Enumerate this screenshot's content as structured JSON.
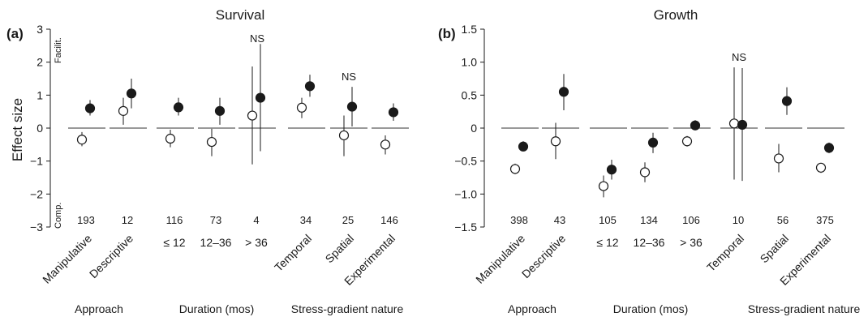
{
  "chart_data": [
    {
      "panel": "(a)",
      "type": "scatter",
      "title": "Survival",
      "ylabel": "Effect size",
      "ylim": [
        -3,
        3
      ],
      "yticks": [
        -3,
        -2,
        -1,
        0,
        1,
        2,
        3
      ],
      "side_labels": {
        "top": "Facilit.",
        "bottom": "Comp."
      },
      "categories": [
        "Manipulative",
        "Descriptive",
        "≤ 12",
        "12–36",
        "> 36",
        "Temporal",
        "Spatial",
        "Experimental"
      ],
      "groups": [
        {
          "label": "Approach",
          "categories": [
            "Manipulative",
            "Descriptive"
          ]
        },
        {
          "label": "Duration (mos)",
          "categories": [
            "≤ 12",
            "12–36",
            "> 36"
          ]
        },
        {
          "label": "Stress-gradient nature",
          "categories": [
            "Temporal",
            "Spatial",
            "Experimental"
          ]
        }
      ],
      "sample_sizes": [
        "193",
        "12",
        "116",
        "73",
        "4",
        "34",
        "25",
        "146"
      ],
      "annotations": [
        {
          "category": "> 36",
          "text": "NS"
        },
        {
          "category": "Spatial",
          "text": "NS"
        }
      ],
      "series": [
        {
          "marker": "open",
          "values": [
            -0.35,
            0.52,
            -0.32,
            -0.42,
            0.38,
            0.62,
            -0.22,
            -0.5
          ],
          "lower": [
            -0.55,
            0.1,
            -0.58,
            -0.85,
            -1.1,
            0.3,
            -0.85,
            -0.8
          ],
          "upper": [
            -0.12,
            0.92,
            -0.05,
            -0.02,
            1.87,
            0.92,
            0.38,
            -0.22
          ]
        },
        {
          "marker": "filled",
          "values": [
            0.6,
            1.05,
            0.63,
            0.52,
            0.92,
            1.27,
            0.65,
            0.48
          ],
          "lower": [
            0.38,
            0.6,
            0.38,
            0.1,
            -0.7,
            0.95,
            0.05,
            0.22
          ],
          "upper": [
            0.85,
            1.5,
            0.92,
            0.92,
            2.55,
            1.62,
            1.25,
            0.75
          ]
        }
      ]
    },
    {
      "panel": "(b)",
      "type": "scatter",
      "title": "Growth",
      "ylabel": "",
      "ylim": [
        -1.5,
        1.5
      ],
      "yticks": [
        -1.5,
        -1.0,
        -0.5,
        0,
        0.5,
        1.0,
        1.5
      ],
      "categories": [
        "Manipulative",
        "Descriptive",
        "≤ 12",
        "12–36",
        "> 36",
        "Temporal",
        "Spatial",
        "Experimental"
      ],
      "groups": [
        {
          "label": "Approach",
          "categories": [
            "Manipulative",
            "Descriptive"
          ]
        },
        {
          "label": "Duration (mos)",
          "categories": [
            "≤ 12",
            "12–36",
            "> 36"
          ]
        },
        {
          "label": "Stress-gradient nature",
          "categories": [
            "Temporal",
            "Spatial",
            "Experimental"
          ]
        }
      ],
      "sample_sizes": [
        "398",
        "43",
        "105",
        "134",
        "106",
        "10",
        "56",
        "375"
      ],
      "annotations": [
        {
          "category": "Temporal",
          "text": "NS"
        }
      ],
      "series": [
        {
          "marker": "open",
          "values": [
            -0.62,
            -0.2,
            -0.88,
            -0.67,
            -0.2,
            0.07,
            -0.46,
            -0.6
          ],
          "lower": [
            -0.7,
            -0.47,
            -1.05,
            -0.82,
            -0.28,
            -0.78,
            -0.67,
            -0.68
          ],
          "upper": [
            -0.54,
            0.08,
            -0.72,
            -0.52,
            -0.12,
            0.92,
            -0.24,
            -0.53
          ]
        },
        {
          "marker": "filled",
          "values": [
            -0.28,
            0.55,
            -0.63,
            -0.22,
            0.04,
            0.05,
            0.41,
            -0.3
          ],
          "lower": [
            -0.35,
            0.27,
            -0.78,
            -0.38,
            -0.02,
            -0.8,
            0.2,
            -0.38
          ],
          "upper": [
            -0.2,
            0.82,
            -0.48,
            -0.07,
            0.12,
            0.91,
            0.62,
            -0.22
          ]
        }
      ]
    }
  ]
}
